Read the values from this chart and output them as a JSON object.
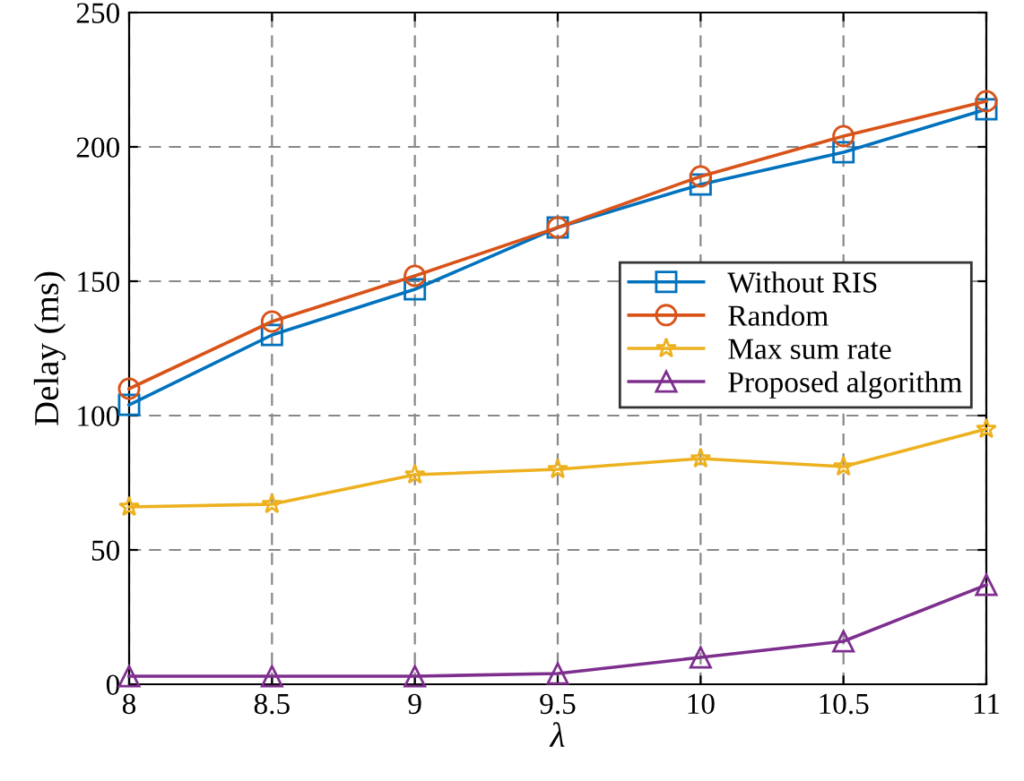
{
  "chart_data": {
    "type": "line",
    "xlabel": "λ",
    "ylabel": "Delay (ms)",
    "x": [
      8,
      8.5,
      9,
      9.5,
      10,
      10.5,
      11
    ],
    "series": [
      {
        "name": "Without RIS",
        "color": "#0072bd",
        "marker": "square",
        "values": [
          104,
          130,
          147,
          170,
          186,
          198,
          214
        ]
      },
      {
        "name": "Random",
        "color": "#d95319",
        "marker": "circle",
        "values": [
          110,
          135,
          152,
          170,
          189,
          204,
          217
        ]
      },
      {
        "name": "Max sum rate",
        "color": "#edb120",
        "marker": "star",
        "values": [
          66,
          67,
          78,
          80,
          84,
          81,
          95
        ]
      },
      {
        "name": "Proposed algorithm",
        "color": "#7e2f8e",
        "marker": "triangle",
        "values": [
          3,
          3,
          3,
          4,
          10,
          16,
          37
        ]
      }
    ],
    "xlim": [
      8,
      11
    ],
    "xticks": [
      8,
      8.5,
      9,
      9.5,
      10,
      10.5,
      11
    ],
    "ylim": [
      0,
      250
    ],
    "yticks": [
      0,
      50,
      100,
      150,
      200,
      250
    ],
    "grid": true,
    "legend": "right",
    "line_style": "solid"
  }
}
